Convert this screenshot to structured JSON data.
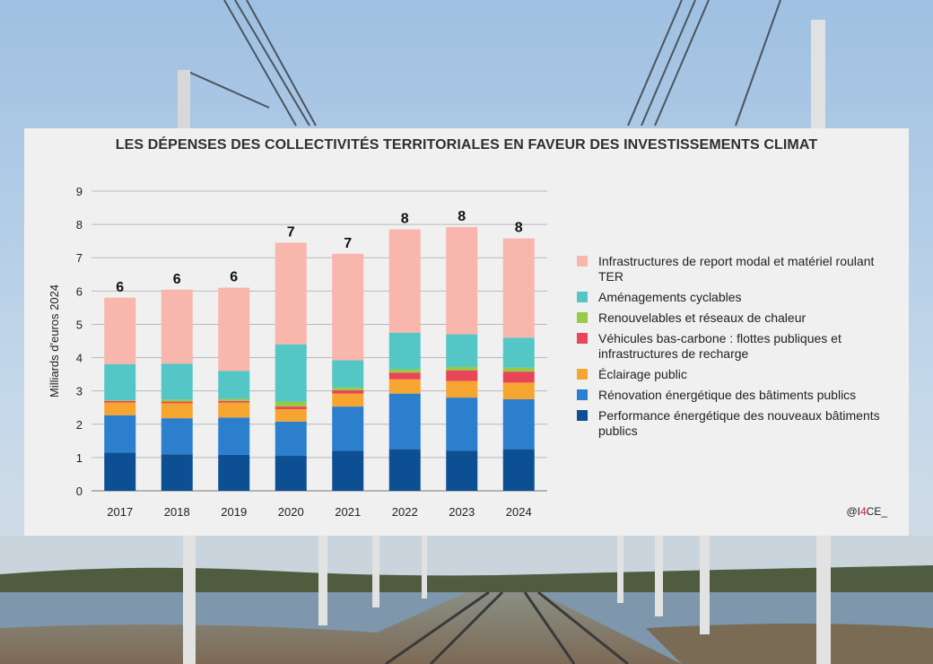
{
  "chart_data": {
    "type": "bar",
    "stacked": true,
    "title": "LES DÉPENSES DES COLLECTIVITÉS TERRITORIALES EN FAVEUR DES INVESTISSEMENTS CLIMAT",
    "ylabel": "Milliards d'euros 2024",
    "xlabel": "",
    "ylim": [
      0,
      9
    ],
    "yticks": [
      "0",
      "1",
      "2",
      "3",
      "4",
      "5",
      "6",
      "7",
      "8",
      "9"
    ],
    "grid": true,
    "legend_position": "right",
    "categories": [
      "2017",
      "2018",
      "2019",
      "2020",
      "2021",
      "2022",
      "2023",
      "2024"
    ],
    "totals": [
      "6",
      "6",
      "6",
      "7",
      "7",
      "8",
      "8",
      "8"
    ],
    "series": [
      {
        "name": "Performance énergétique des nouveaux bâtiments publics",
        "color": "#0d4f93",
        "values": [
          1.15,
          1.1,
          1.08,
          1.05,
          1.2,
          1.25,
          1.2,
          1.25
        ]
      },
      {
        "name": "Rénovation énergétique des bâtiments publics",
        "color": "#2b7fcd",
        "values": [
          1.12,
          1.08,
          1.12,
          1.03,
          1.33,
          1.67,
          1.6,
          1.5
        ]
      },
      {
        "name": "Éclairage public",
        "color": "#f7a531",
        "values": [
          0.38,
          0.45,
          0.45,
          0.37,
          0.39,
          0.43,
          0.5,
          0.5
        ]
      },
      {
        "name": "Véhicules bas-carbone : flottes publiques et infrastructures de recharge",
        "color": "#e8455a",
        "values": [
          0.05,
          0.05,
          0.05,
          0.08,
          0.1,
          0.2,
          0.32,
          0.33
        ]
      },
      {
        "name": "Renouvelables et réseaux de chaleur",
        "color": "#97cb43",
        "values": [
          0.02,
          0.06,
          0.06,
          0.15,
          0.08,
          0.1,
          0.1,
          0.12
        ]
      },
      {
        "name": "Aménagements cyclables",
        "color": "#55c6c6",
        "values": [
          1.08,
          1.08,
          0.84,
          1.72,
          0.82,
          1.1,
          0.98,
          0.9
        ]
      },
      {
        "name": "Infrastructures de report modal et matériel roulant TER",
        "color": "#f8b6ad",
        "values": [
          2.0,
          2.22,
          2.5,
          3.05,
          3.2,
          3.1,
          3.22,
          2.98
        ]
      }
    ]
  },
  "legend_items": [
    {
      "label": "Infrastructures de report modal et matériel roulant TER",
      "color": "#f8b6ad"
    },
    {
      "label": "Aménagements cyclables",
      "color": "#55c6c6"
    },
    {
      "label": "Renouvelables et réseaux de chaleur",
      "color": "#97cb43"
    },
    {
      "label": "Véhicules bas-carbone : flottes publiques et infrastructures de recharge",
      "color": "#e8455a"
    },
    {
      "label": "Éclairage public",
      "color": "#f7a531"
    },
    {
      "label": "Rénovation énergétique des bâtiments publics",
      "color": "#2b7fcd"
    },
    {
      "label": "Performance énergétique des nouveaux bâtiments publics",
      "color": "#0d4f93"
    }
  ],
  "credit": {
    "prefix": "@I",
    "accent": "4",
    "suffix": "CE_"
  }
}
